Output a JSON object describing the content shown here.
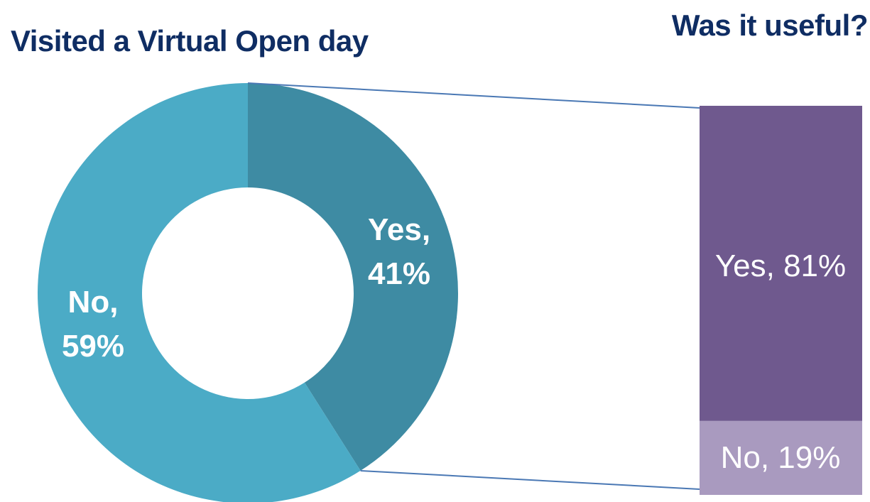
{
  "chart_data": [
    {
      "type": "pie",
      "title": "Visited a Virtual Open day",
      "categories": [
        "Yes",
        "No"
      ],
      "values": [
        41,
        59
      ],
      "labels": [
        "Yes,",
        "41%",
        "No,",
        "59%"
      ],
      "colors": [
        "#3e8ba3",
        "#4babc6"
      ]
    },
    {
      "type": "bar",
      "stacked": true,
      "title": "Was it useful?",
      "categories": [
        "Yes",
        "No"
      ],
      "values": [
        81,
        19
      ],
      "labels": [
        "Yes, 81%",
        "No, 19%"
      ],
      "colors": [
        "#6f598e",
        "#a99abf"
      ]
    }
  ],
  "colors": {
    "title": "#0f2d63",
    "connector": "#4a78b4",
    "label_on_dark": "#ffffff"
  }
}
